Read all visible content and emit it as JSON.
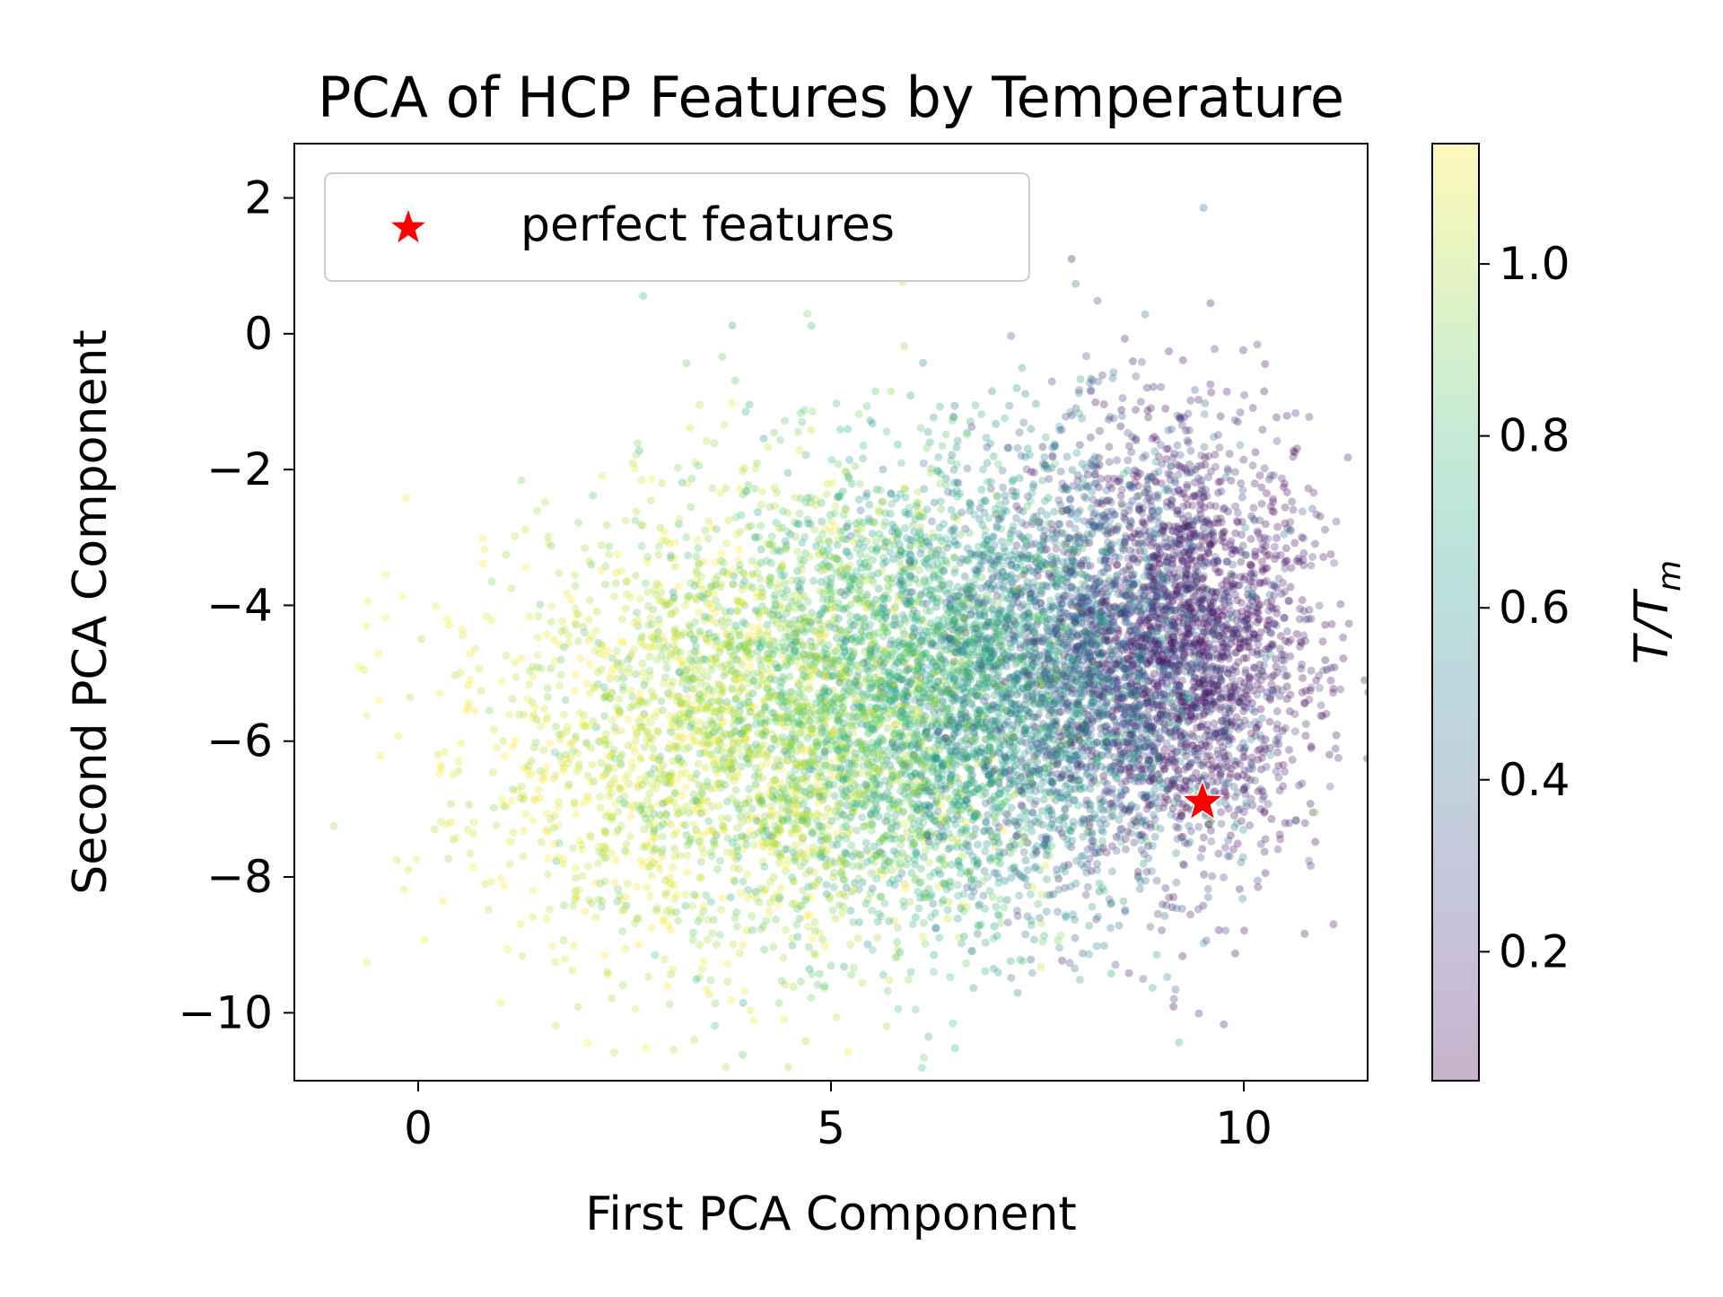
{
  "chart_data": {
    "type": "scatter",
    "title": "PCA of HCP Features by Temperature",
    "xlabel": "First PCA Component",
    "ylabel": "Second PCA Component",
    "xlim": [
      -1.5,
      11.5
    ],
    "ylim": [
      -11.0,
      2.8
    ],
    "xticks": [
      0,
      5,
      10
    ],
    "yticks": [
      2,
      0,
      -2,
      -4,
      -6,
      -8,
      -10
    ],
    "grid": false,
    "legend": {
      "position": "top-left",
      "entries": [
        "perfect features"
      ]
    },
    "colorbar": {
      "label": "T/T",
      "label_subscript": "m",
      "range": [
        0.05,
        1.14
      ],
      "ticks": [
        0.2,
        0.4,
        0.6,
        0.8,
        1.0
      ],
      "colormap": "viridis",
      "alpha": 0.3
    },
    "series": [
      {
        "name": "",
        "marker": "circle",
        "opacity": 0.3,
        "clusters": [
          {
            "t": 0.1,
            "cx": 9.4,
            "cy": -4.6,
            "sx": 0.75,
            "sy": 1.6,
            "n": 1600
          },
          {
            "t": 0.3,
            "cx": 8.6,
            "cy": -4.8,
            "sx": 0.9,
            "sy": 1.6,
            "n": 1500
          },
          {
            "t": 0.5,
            "cx": 7.6,
            "cy": -5.0,
            "sx": 1.0,
            "sy": 1.6,
            "n": 1500
          },
          {
            "t": 0.7,
            "cx": 6.4,
            "cy": -5.3,
            "sx": 1.1,
            "sy": 1.7,
            "n": 1500
          },
          {
            "t": 0.85,
            "cx": 5.3,
            "cy": -5.5,
            "sx": 1.3,
            "sy": 1.7,
            "n": 1500
          },
          {
            "t": 1.0,
            "cx": 4.2,
            "cy": -5.8,
            "sx": 1.4,
            "sy": 1.7,
            "n": 1400
          },
          {
            "t": 1.1,
            "cx": 3.0,
            "cy": -6.1,
            "sx": 1.5,
            "sy": 1.6,
            "n": 700
          }
        ]
      },
      {
        "name": "perfect features",
        "marker": "star",
        "color": "#ff0000",
        "points": [
          {
            "x": 9.5,
            "y": -6.9
          }
        ]
      }
    ]
  }
}
